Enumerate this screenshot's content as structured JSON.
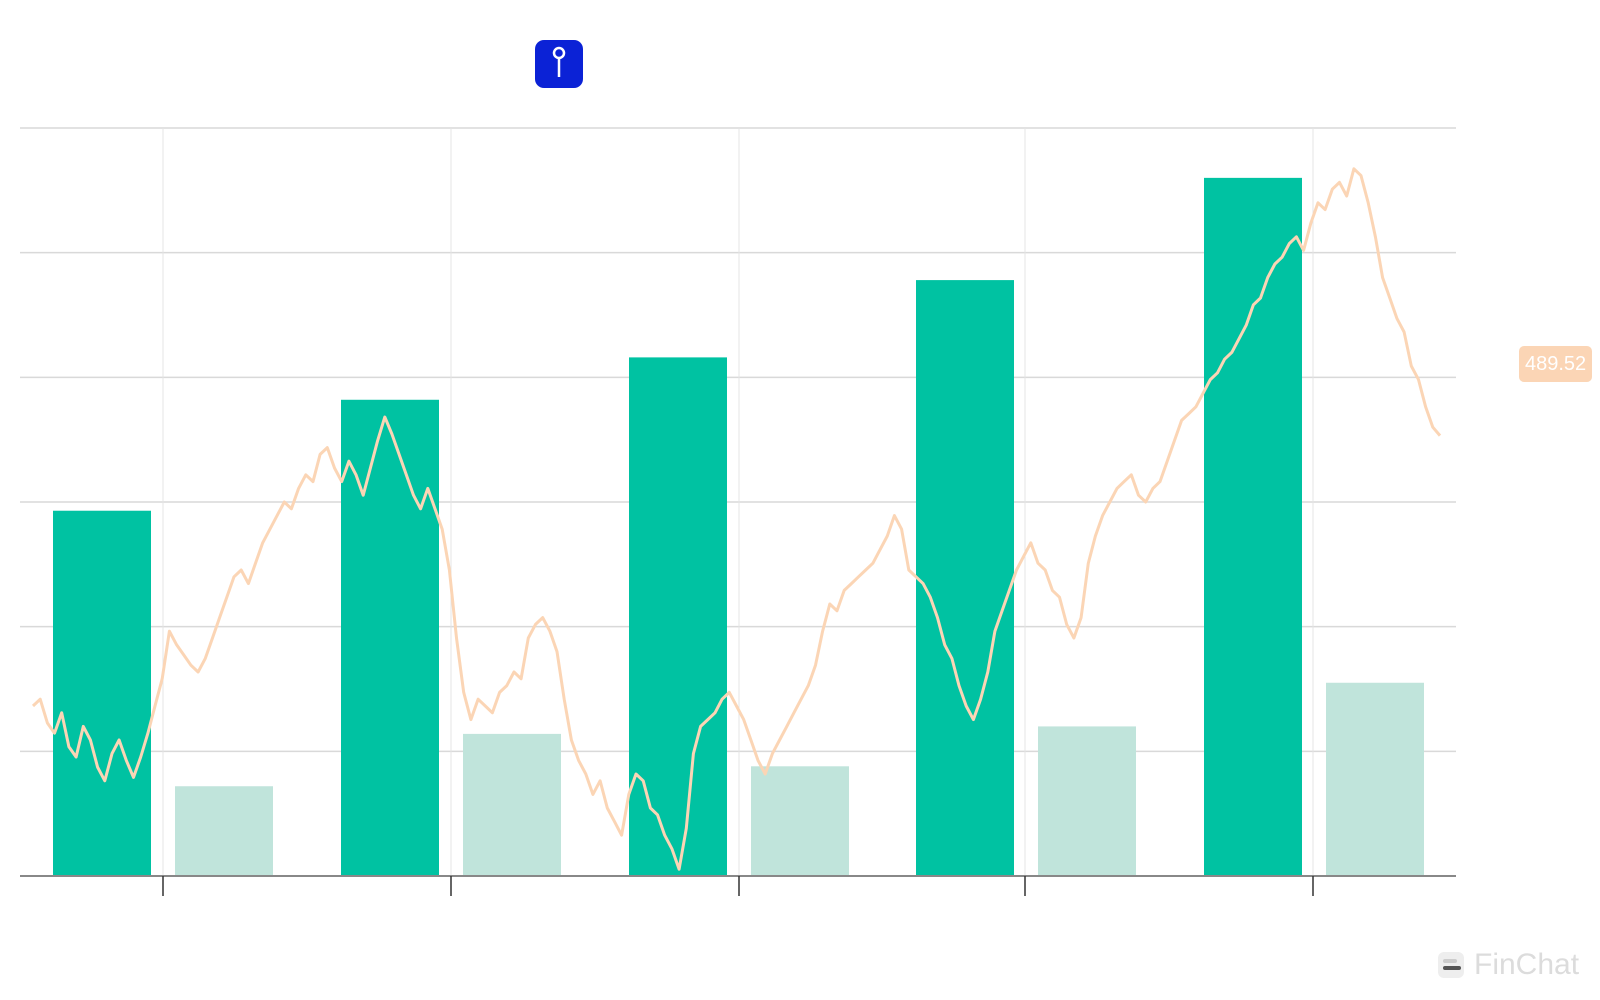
{
  "pin_button": {
    "icon": "pin-icon"
  },
  "price_tag": {
    "value": "489.52"
  },
  "watermark": {
    "text": "FinChat",
    "icon": "finchat-logo-icon"
  },
  "colors": {
    "bar_primary": "#00c2a2",
    "bar_secondary": "#c0e4db",
    "price_line": "#fbd5b5",
    "price_tag_bg": "#fbd5b5",
    "grid": "#d9d9d9",
    "axis": "#888888",
    "pin_button_bg": "#0b22d6"
  },
  "chart_data": {
    "type": "bar",
    "title": "",
    "xlabel": "",
    "ylabel": "",
    "grid": true,
    "categories": [
      "",
      "",
      "",
      "",
      ""
    ],
    "bar_y_range": [
      0,
      6
    ],
    "series": [
      {
        "kind": "bar",
        "values": [
          2.93,
          3.82,
          4.16,
          4.78,
          5.6
        ],
        "color": "#00c2a2"
      },
      {
        "kind": "bar",
        "values": [
          0.72,
          1.14,
          0.88,
          1.2,
          1.55
        ],
        "color": "#c0e4db"
      }
    ],
    "price_line": {
      "color": "#fbd5b5",
      "last_value": 489.52,
      "y_range": [
        360,
        580
      ],
      "values": [
        410,
        412,
        405,
        402,
        408,
        398,
        395,
        404,
        400,
        392,
        388,
        396,
        400,
        394,
        389,
        395,
        402,
        410,
        418,
        432,
        428,
        425,
        422,
        420,
        424,
        430,
        436,
        442,
        448,
        450,
        446,
        452,
        458,
        462,
        466,
        470,
        468,
        474,
        478,
        476,
        484,
        486,
        480,
        476,
        482,
        478,
        472,
        480,
        488,
        495,
        490,
        484,
        478,
        472,
        468,
        474,
        468,
        462,
        450,
        430,
        414,
        406,
        412,
        410,
        408,
        414,
        416,
        420,
        418,
        430,
        434,
        436,
        432,
        426,
        412,
        400,
        394,
        390,
        384,
        388,
        380,
        376,
        372,
        384,
        390,
        388,
        380,
        378,
        372,
        368,
        362,
        374,
        396,
        404,
        406,
        408,
        412,
        414,
        410,
        406,
        400,
        394,
        390,
        396,
        400,
        404,
        408,
        412,
        416,
        422,
        432,
        440,
        438,
        444,
        446,
        448,
        450,
        452,
        456,
        460,
        466,
        462,
        450,
        448,
        446,
        442,
        436,
        428,
        424,
        416,
        410,
        406,
        412,
        420,
        432,
        438,
        444,
        450,
        454,
        458,
        452,
        450,
        444,
        442,
        434,
        430,
        436,
        452,
        460,
        466,
        470,
        474,
        476,
        478,
        472,
        470,
        474,
        476,
        482,
        488,
        494,
        496,
        498,
        502,
        506,
        508,
        512,
        514,
        518,
        522,
        528,
        530,
        536,
        540,
        542,
        546,
        548,
        544,
        552,
        558,
        556,
        562,
        564,
        560,
        568,
        566,
        558,
        548,
        536,
        530,
        524,
        520,
        510,
        506,
        498,
        492,
        489.52
      ]
    },
    "bar_label_hints": [
      "",
      "",
      "",
      "",
      "",
      "",
      "",
      "",
      "",
      ""
    ]
  }
}
